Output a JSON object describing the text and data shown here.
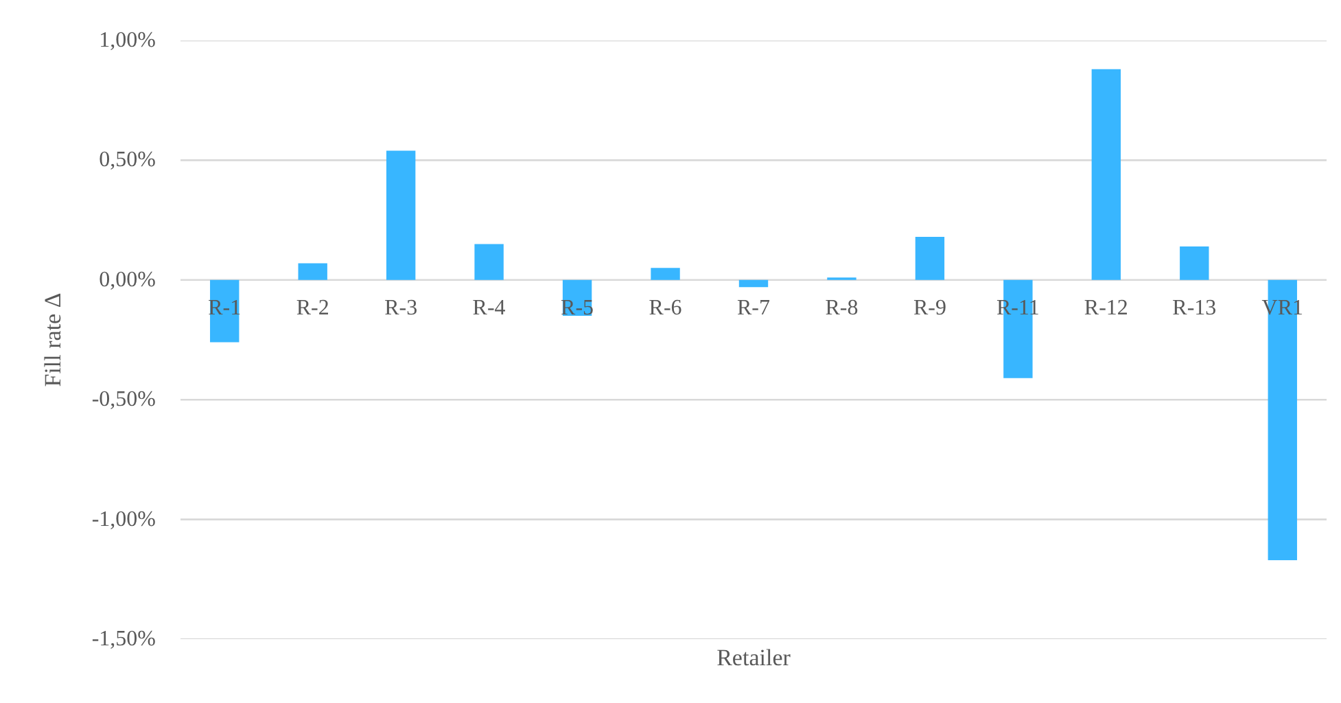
{
  "chart_data": {
    "type": "bar",
    "xlabel": "Retailer",
    "ylabel": "Fill rate Δ",
    "categories": [
      "R-1",
      "R-2",
      "R-3",
      "R-4",
      "R-5",
      "R-6",
      "R-7",
      "R-8",
      "R-9",
      "R-11",
      "R-12",
      "R-13",
      "VR1"
    ],
    "values": [
      -0.26,
      0.07,
      0.54,
      0.15,
      -0.15,
      0.05,
      -0.03,
      0.01,
      0.18,
      -0.41,
      0.88,
      0.14,
      -1.17
    ],
    "color": "#38b6ff",
    "ylim": [
      -1.5,
      1.0
    ],
    "yticks": [
      {
        "value": -1.5,
        "label": "-1,50%"
      },
      {
        "value": -1.0,
        "label": "-1,00%"
      },
      {
        "value": -0.5,
        "label": "-0,50%"
      },
      {
        "value": 0,
        "label": "0,00%"
      },
      {
        "value": 0.5,
        "label": "0,50%"
      },
      {
        "value": 1.0,
        "label": "1,00%"
      }
    ],
    "grid": "y"
  }
}
